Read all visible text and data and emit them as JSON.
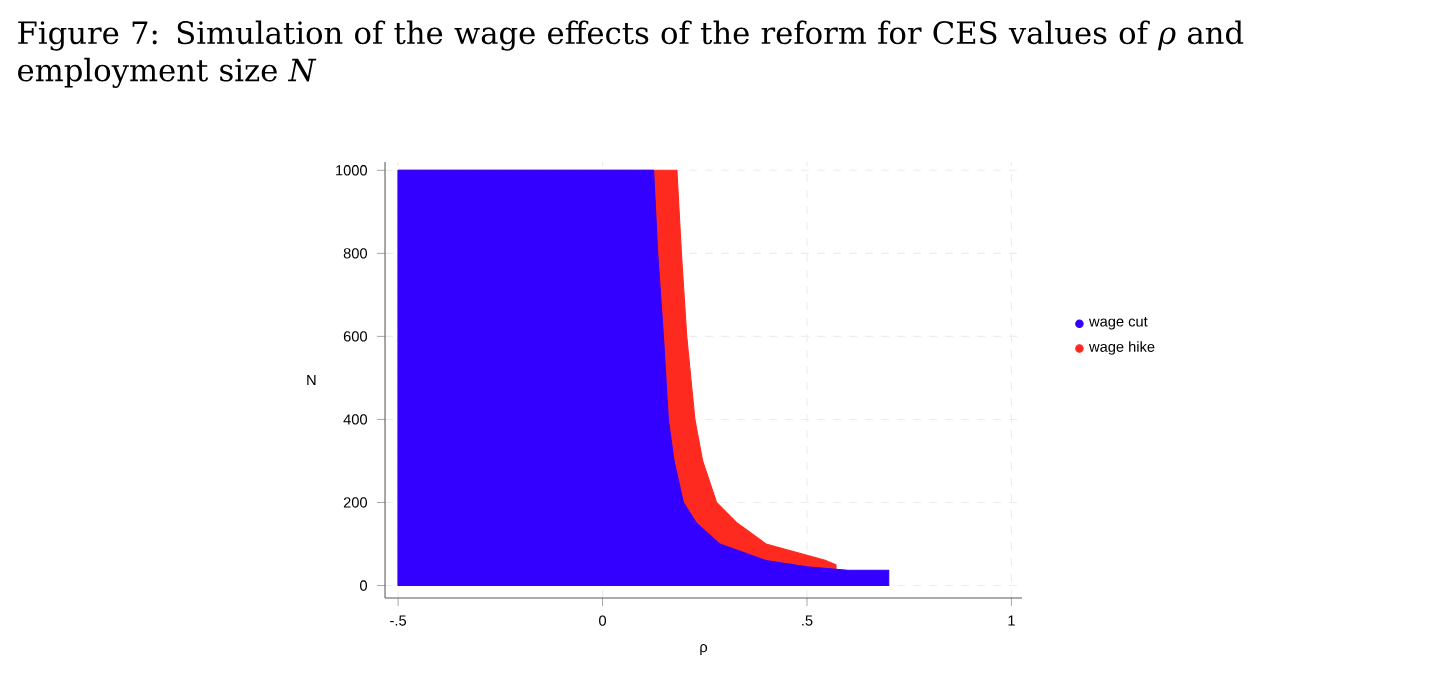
{
  "chart_data": {
    "type": "area",
    "title": "Figure 7: Simulation of the wage effects of the reform for CES values of *ρ* and employment size *N*",
    "xlabel": "ρ",
    "ylabel": "N",
    "series": [
      {
        "name": "wage hike",
        "color": "#ff2a1f",
        "x": [
          -0.5,
          0.182,
          0.193,
          0.206,
          0.226,
          0.245,
          0.279,
          0.33,
          0.4,
          0.547,
          0.571
        ],
        "values": [
          1000,
          1000,
          800,
          600,
          400,
          300,
          200,
          150,
          100,
          60,
          50
        ]
      },
      {
        "name": "wage cut",
        "color": "#3300ff",
        "x": [
          -0.5,
          0.125,
          0.135,
          0.149,
          0.161,
          0.175,
          0.198,
          0.23,
          0.287,
          0.4,
          0.5,
          0.6,
          0.7
        ],
        "values": [
          1000,
          1000,
          800,
          600,
          400,
          300,
          200,
          150,
          100,
          60,
          45,
          37,
          37
        ]
      }
    ],
    "xlim": [
      -0.532,
      1.026
    ],
    "ylim": [
      -30,
      1020
    ],
    "xticks": [
      {
        "value": -0.5,
        "label": "-.5"
      },
      0,
      {
        "value": 0.5,
        "label": ".5"
      },
      1
    ],
    "yticks": [
      0,
      200,
      400,
      600,
      800,
      1000
    ],
    "grid": true,
    "legend": "right"
  }
}
